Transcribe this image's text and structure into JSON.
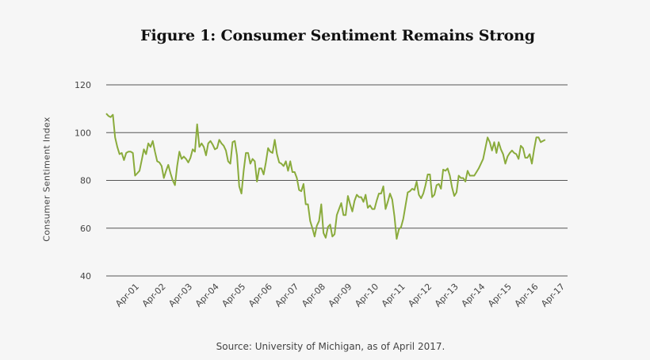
{
  "chart_data": {
    "type": "line",
    "title": "Figure 1: Consumer Sentiment Remains Strong",
    "ylabel": "Consumer Sentiment Index",
    "xlabel": "",
    "ylim": [
      40,
      120
    ],
    "yticks": [
      40,
      60,
      80,
      100,
      120
    ],
    "xlim": [
      2000.0,
      2017.34
    ],
    "xticks": [
      {
        "label": "Apr-01",
        "x": 2001.25
      },
      {
        "label": "Apr-02",
        "x": 2002.25
      },
      {
        "label": "Apr-03",
        "x": 2003.25
      },
      {
        "label": "Apr-04",
        "x": 2004.25
      },
      {
        "label": "Apr-05",
        "x": 2005.25
      },
      {
        "label": "Apr-06",
        "x": 2006.25
      },
      {
        "label": "Apr-07",
        "x": 2007.25
      },
      {
        "label": "Apr-08",
        "x": 2008.25
      },
      {
        "label": "Apr-09",
        "x": 2009.25
      },
      {
        "label": "Apr-10",
        "x": 2010.25
      },
      {
        "label": "Apr-11",
        "x": 2011.25
      },
      {
        "label": "Apr-12",
        "x": 2012.25
      },
      {
        "label": "Apr-13",
        "x": 2013.25
      },
      {
        "label": "Apr-14",
        "x": 2014.25
      },
      {
        "label": "Apr-15",
        "x": 2015.25
      },
      {
        "label": "Apr-16",
        "x": 2016.25
      },
      {
        "label": "Apr-17",
        "x": 2017.25
      }
    ],
    "series": [
      {
        "name": "Consumer Sentiment Index",
        "color": "#8aab3c",
        "x_start": 2000.0,
        "x_step": 0.0833333,
        "values": [
          108,
          107,
          106.5,
          107.5,
          98,
          94,
          91,
          91.5,
          88.5,
          91.5,
          92,
          92,
          91.5,
          82,
          83,
          84,
          88.5,
          93,
          91,
          95.5,
          94,
          96.5,
          92,
          88,
          87.5,
          86,
          81,
          84,
          86.5,
          83,
          80,
          78,
          86,
          92,
          89,
          90,
          89,
          87.5,
          89.5,
          93,
          92,
          103.5,
          94,
          95.5,
          94,
          90.5,
          95.5,
          96.5,
          95,
          93,
          93.5,
          97,
          95.5,
          94.5,
          92.5,
          88,
          87,
          96,
          96.5,
          90.5,
          77.5,
          74.5,
          84,
          91.5,
          91.5,
          87,
          89,
          88,
          79.5,
          85,
          85,
          82.5,
          87.5,
          93.5,
          92,
          91.5,
          97,
          91,
          87.5,
          87,
          86,
          88,
          84,
          88,
          83.5,
          83.5,
          81,
          76,
          75.5,
          78.5,
          70,
          70,
          63,
          60,
          56.5,
          61,
          63,
          70,
          58,
          56,
          60.5,
          61.5,
          56.5,
          57.5,
          65.5,
          68,
          70.5,
          65.5,
          65.5,
          73.5,
          70,
          67,
          71.5,
          74,
          73,
          73,
          71,
          74,
          68.5,
          69.5,
          68,
          68,
          71.5,
          74.5,
          74.5,
          77.5,
          68,
          71,
          74.5,
          72,
          65,
          55.5,
          59.5,
          60.5,
          64,
          69.5,
          75,
          75.5,
          76.5,
          76,
          79.5,
          74,
          72.5,
          74.5,
          78,
          82.5,
          82.5,
          73,
          74,
          78,
          78.5,
          76.5,
          84.5,
          84,
          85,
          82,
          77,
          73.5,
          75,
          82,
          81,
          81,
          79.5,
          84,
          82,
          82,
          82,
          83.5,
          85,
          87,
          89,
          93.5,
          98,
          96,
          92.5,
          96,
          91.5,
          96,
          93,
          91,
          87,
          90,
          91.5,
          92.5,
          91.5,
          91,
          89,
          94.5,
          93.5,
          89.5,
          89.5,
          91,
          87,
          93,
          98,
          98,
          96,
          96.5,
          97
        ]
      }
    ]
  },
  "source": "Source: University of Michigan, as of April 2017."
}
